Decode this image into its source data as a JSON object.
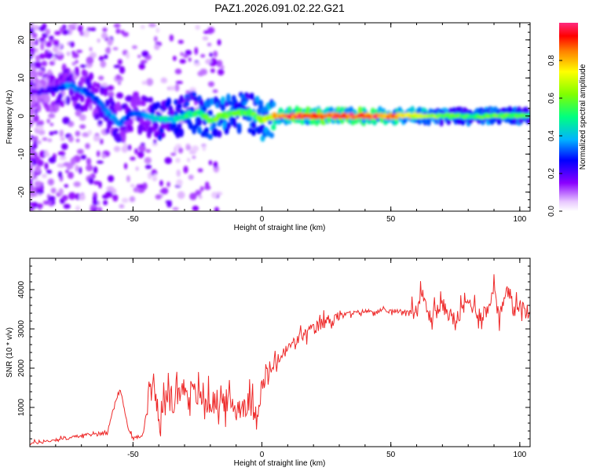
{
  "figure_title": "PAZ1.2026.091.02.22.G21",
  "chart_data": [
    {
      "type": "heatmap",
      "xlabel": "Height of straight line (km)",
      "ylabel": "Frequency (Hz)",
      "xlim": [
        -90,
        104
      ],
      "ylim": [
        -25,
        24.5
      ],
      "xticks": [
        -50,
        0,
        50,
        100
      ],
      "yticks": [
        -20,
        -10,
        0,
        10,
        20
      ],
      "colorbar": {
        "label": "Normalized spectral amplitude",
        "range": [
          0,
          1
        ],
        "ticks": [
          0.0,
          0.2,
          0.4,
          0.6,
          0.8
        ],
        "tick_labels": [
          "0.0",
          "0.2",
          "0.4",
          "0.6",
          "0.8"
        ]
      },
      "ridge": [
        {
          "x": -90,
          "f": 6,
          "amp": 0.15
        },
        {
          "x": -80,
          "f": 7,
          "amp": 0.25
        },
        {
          "x": -75,
          "f": 8,
          "amp": 0.35
        },
        {
          "x": -70,
          "f": 7,
          "amp": 0.35
        },
        {
          "x": -65,
          "f": 5,
          "amp": 0.3
        },
        {
          "x": -60,
          "f": 1,
          "amp": 0.35
        },
        {
          "x": -55,
          "f": -2,
          "amp": 0.35
        },
        {
          "x": -50,
          "f": 1,
          "amp": 0.3
        },
        {
          "x": -45,
          "f": 0,
          "amp": 0.35
        },
        {
          "x": -40,
          "f": -1,
          "amp": 0.45
        },
        {
          "x": -35,
          "f": -1,
          "amp": 0.45
        },
        {
          "x": -30,
          "f": 0,
          "amp": 0.5
        },
        {
          "x": -25,
          "f": 1,
          "amp": 0.5
        },
        {
          "x": -20,
          "f": -1,
          "amp": 0.6
        },
        {
          "x": -15,
          "f": 0,
          "amp": 0.6
        },
        {
          "x": -10,
          "f": 1,
          "amp": 0.55
        },
        {
          "x": -5,
          "f": 1,
          "amp": 0.55
        },
        {
          "x": 0,
          "f": -1,
          "amp": 0.6
        },
        {
          "x": 5,
          "f": 0,
          "amp": 0.8
        },
        {
          "x": 10,
          "f": 0,
          "amp": 0.9
        },
        {
          "x": 20,
          "f": 0,
          "amp": 0.95
        },
        {
          "x": 30,
          "f": 0,
          "amp": 0.95
        },
        {
          "x": 40,
          "f": 0,
          "amp": 0.95
        },
        {
          "x": 50,
          "f": 0,
          "amp": 0.9
        },
        {
          "x": 60,
          "f": 0,
          "amp": 0.7
        },
        {
          "x": 70,
          "f": 0,
          "amp": 0.6
        },
        {
          "x": 80,
          "f": 0,
          "amp": 0.55
        },
        {
          "x": 90,
          "f": 0,
          "amp": 0.6
        },
        {
          "x": 100,
          "f": 0,
          "amp": 0.55
        }
      ]
    },
    {
      "type": "line",
      "xlabel": "Height of straight line (km)",
      "ylabel": "SNR (10 * v/v)",
      "xlim": [
        -90,
        104
      ],
      "ylim": [
        0,
        4800
      ],
      "xticks": [
        -50,
        0,
        50,
        100
      ],
      "yticks": [
        1000,
        2000,
        3000,
        4000
      ],
      "color": "#ee2a2a",
      "series": [
        {
          "name": "SNR",
          "x": [
            -90,
            -85,
            -80,
            -75,
            -70,
            -65,
            -60,
            -58,
            -55,
            -52,
            -50,
            -46,
            -43,
            -40,
            -35,
            -30,
            -25,
            -20,
            -15,
            -10,
            -5,
            -2,
            0,
            2,
            5,
            10,
            15,
            20,
            25,
            30,
            35,
            40,
            45,
            50,
            55,
            60,
            62,
            65,
            70,
            75,
            80,
            85,
            88,
            90,
            92,
            95,
            100,
            104
          ],
          "y": [
            80,
            120,
            180,
            220,
            280,
            320,
            350,
            900,
            1500,
            500,
            200,
            300,
            1900,
            900,
            1300,
            1500,
            1300,
            1100,
            1200,
            1000,
            1100,
            900,
            1500,
            1800,
            2100,
            2500,
            2800,
            3000,
            3200,
            3350,
            3400,
            3450,
            3450,
            3450,
            3450,
            3450,
            3900,
            3300,
            3600,
            3200,
            3700,
            3350,
            3500,
            4200,
            3300,
            3900,
            3600,
            3350
          ]
        }
      ]
    }
  ]
}
